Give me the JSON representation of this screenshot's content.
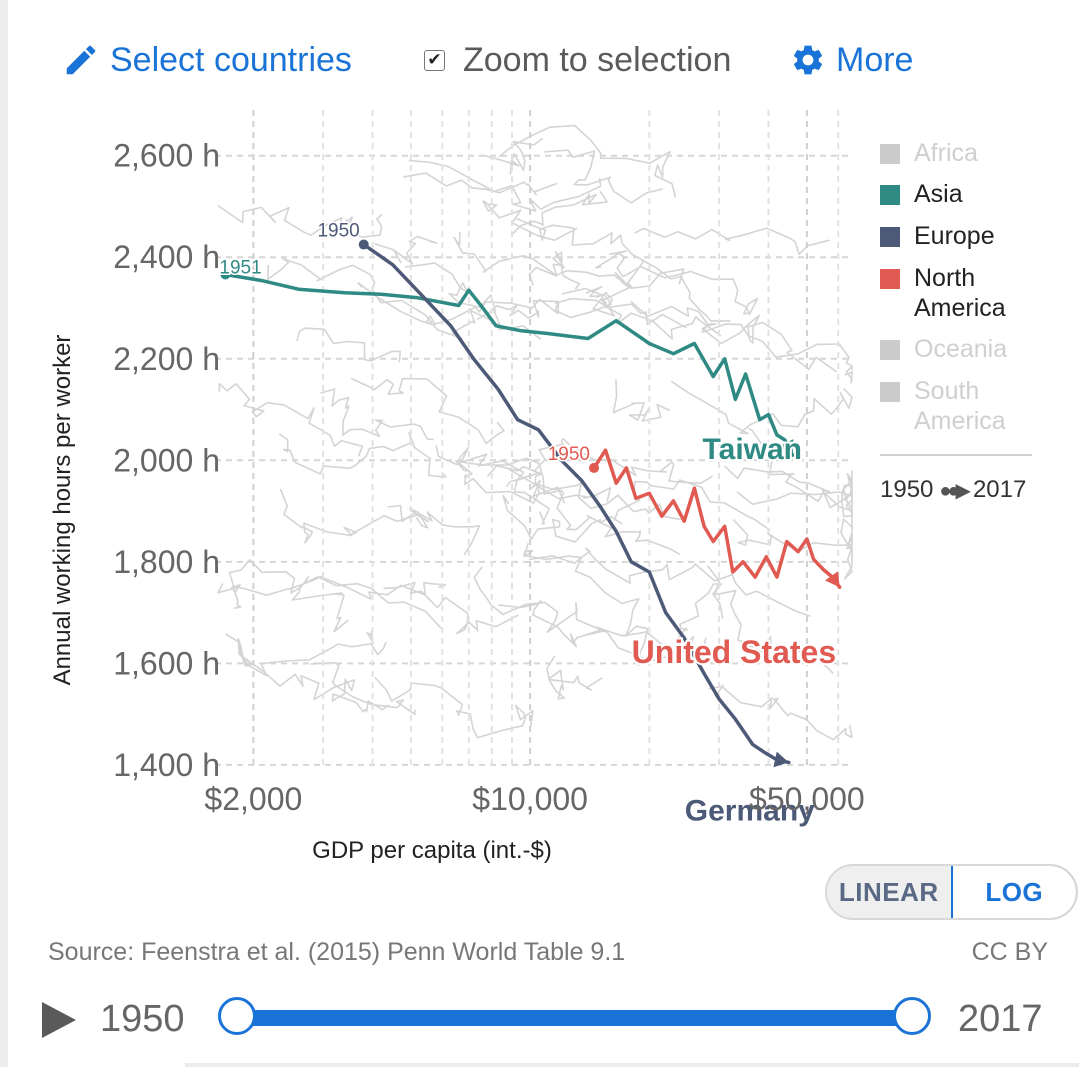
{
  "toolbar": {
    "select_label": "Select countries",
    "zoom_label": "Zoom to selection",
    "zoom_checked": true,
    "more_label": "More",
    "select_icon": "pencil-icon",
    "more_icon": "gear-icon"
  },
  "legend": {
    "items": [
      {
        "label": "Africa",
        "color": "#cccccc",
        "active": false
      },
      {
        "label": "Asia",
        "color": "#2f8a84",
        "active": true
      },
      {
        "label": "Europe",
        "color": "#4c5a78",
        "active": true
      },
      {
        "label": "North America",
        "color": "#e05a52",
        "active": true
      },
      {
        "label": "Oceania",
        "color": "#cccccc",
        "active": false
      },
      {
        "label": "South America",
        "color": "#cccccc",
        "active": false
      }
    ],
    "timespan_start": "1950",
    "timespan_end": "2017"
  },
  "scale_toggle": {
    "linear_label": "LINEAR",
    "log_label": "LOG",
    "selected": "LOG"
  },
  "footer": {
    "source": "Source: Feenstra et al. (2015) Penn World Table 9.1",
    "license": "CC BY"
  },
  "timeline": {
    "start_label": "1950",
    "end_label": "2017",
    "play_icon": "play-icon",
    "range_start": 1950,
    "range_end": 2017
  },
  "chart_data": {
    "type": "line",
    "xlabel": "GDP per capita (int.-$)",
    "ylabel": "Annual working hours per worker",
    "x_scale": "log",
    "x_ticks": [
      {
        "value": 2000,
        "label": "$2,000"
      },
      {
        "value": 10000,
        "label": "$10,000"
      },
      {
        "value": 50000,
        "label": "$50,000"
      }
    ],
    "y_ticks": [
      {
        "value": 1400,
        "label": "1,400 h"
      },
      {
        "value": 1600,
        "label": "1,600 h"
      },
      {
        "value": 1800,
        "label": "1,800 h"
      },
      {
        "value": 2000,
        "label": "2,000 h"
      },
      {
        "value": 2200,
        "label": "2,200 h"
      },
      {
        "value": 2400,
        "label": "2,400 h"
      },
      {
        "value": 2600,
        "label": "2,600 h"
      }
    ],
    "xlim": [
      1600,
      65000
    ],
    "ylim": [
      1390,
      2690
    ],
    "grid": true,
    "series": [
      {
        "name": "Taiwan",
        "color": "#2f8a84",
        "start_year_label": "1951",
        "points": [
          [
            1700,
            2366
          ],
          [
            2100,
            2354
          ],
          [
            2600,
            2337
          ],
          [
            3400,
            2330
          ],
          [
            4200,
            2327
          ],
          [
            5200,
            2320
          ],
          [
            6600,
            2305
          ],
          [
            7000,
            2335
          ],
          [
            7600,
            2300
          ],
          [
            8200,
            2265
          ],
          [
            9500,
            2255
          ],
          [
            11000,
            2250
          ],
          [
            14000,
            2240
          ],
          [
            16500,
            2275
          ],
          [
            20000,
            2230
          ],
          [
            23000,
            2210
          ],
          [
            26000,
            2230
          ],
          [
            29000,
            2165
          ],
          [
            31000,
            2200
          ],
          [
            33000,
            2120
          ],
          [
            35000,
            2170
          ],
          [
            38000,
            2080
          ],
          [
            40000,
            2090
          ],
          [
            42000,
            2050
          ],
          [
            44000,
            2040
          ],
          [
            46000,
            2010
          ]
        ]
      },
      {
        "name": "Germany",
        "color": "#4c5a78",
        "start_year_label": "1950",
        "points": [
          [
            3800,
            2425
          ],
          [
            4500,
            2385
          ],
          [
            5400,
            2320
          ],
          [
            6300,
            2265
          ],
          [
            7200,
            2200
          ],
          [
            8300,
            2140
          ],
          [
            9300,
            2080
          ],
          [
            10500,
            2060
          ],
          [
            12000,
            2000
          ],
          [
            13500,
            1960
          ],
          [
            15000,
            1910
          ],
          [
            16500,
            1860
          ],
          [
            18000,
            1800
          ],
          [
            20000,
            1780
          ],
          [
            22000,
            1700
          ],
          [
            24500,
            1650
          ],
          [
            27500,
            1580
          ],
          [
            30000,
            1530
          ],
          [
            33000,
            1490
          ],
          [
            36500,
            1440
          ],
          [
            39000,
            1425
          ],
          [
            42000,
            1410
          ],
          [
            45000,
            1405
          ]
        ]
      },
      {
        "name": "United States",
        "color": "#e05a52",
        "start_year_label": "1950",
        "points": [
          [
            14500,
            1985
          ],
          [
            15500,
            2020
          ],
          [
            16500,
            1955
          ],
          [
            17500,
            1985
          ],
          [
            18500,
            1925
          ],
          [
            20000,
            1935
          ],
          [
            21500,
            1890
          ],
          [
            23000,
            1920
          ],
          [
            24500,
            1880
          ],
          [
            26000,
            1945
          ],
          [
            27500,
            1870
          ],
          [
            29000,
            1840
          ],
          [
            31000,
            1870
          ],
          [
            32500,
            1780
          ],
          [
            34500,
            1800
          ],
          [
            37000,
            1770
          ],
          [
            39500,
            1810
          ],
          [
            42000,
            1770
          ],
          [
            44500,
            1840
          ],
          [
            47500,
            1820
          ],
          [
            50000,
            1845
          ],
          [
            52000,
            1805
          ],
          [
            55000,
            1785
          ],
          [
            58000,
            1770
          ],
          [
            60500,
            1750
          ]
        ]
      }
    ]
  }
}
